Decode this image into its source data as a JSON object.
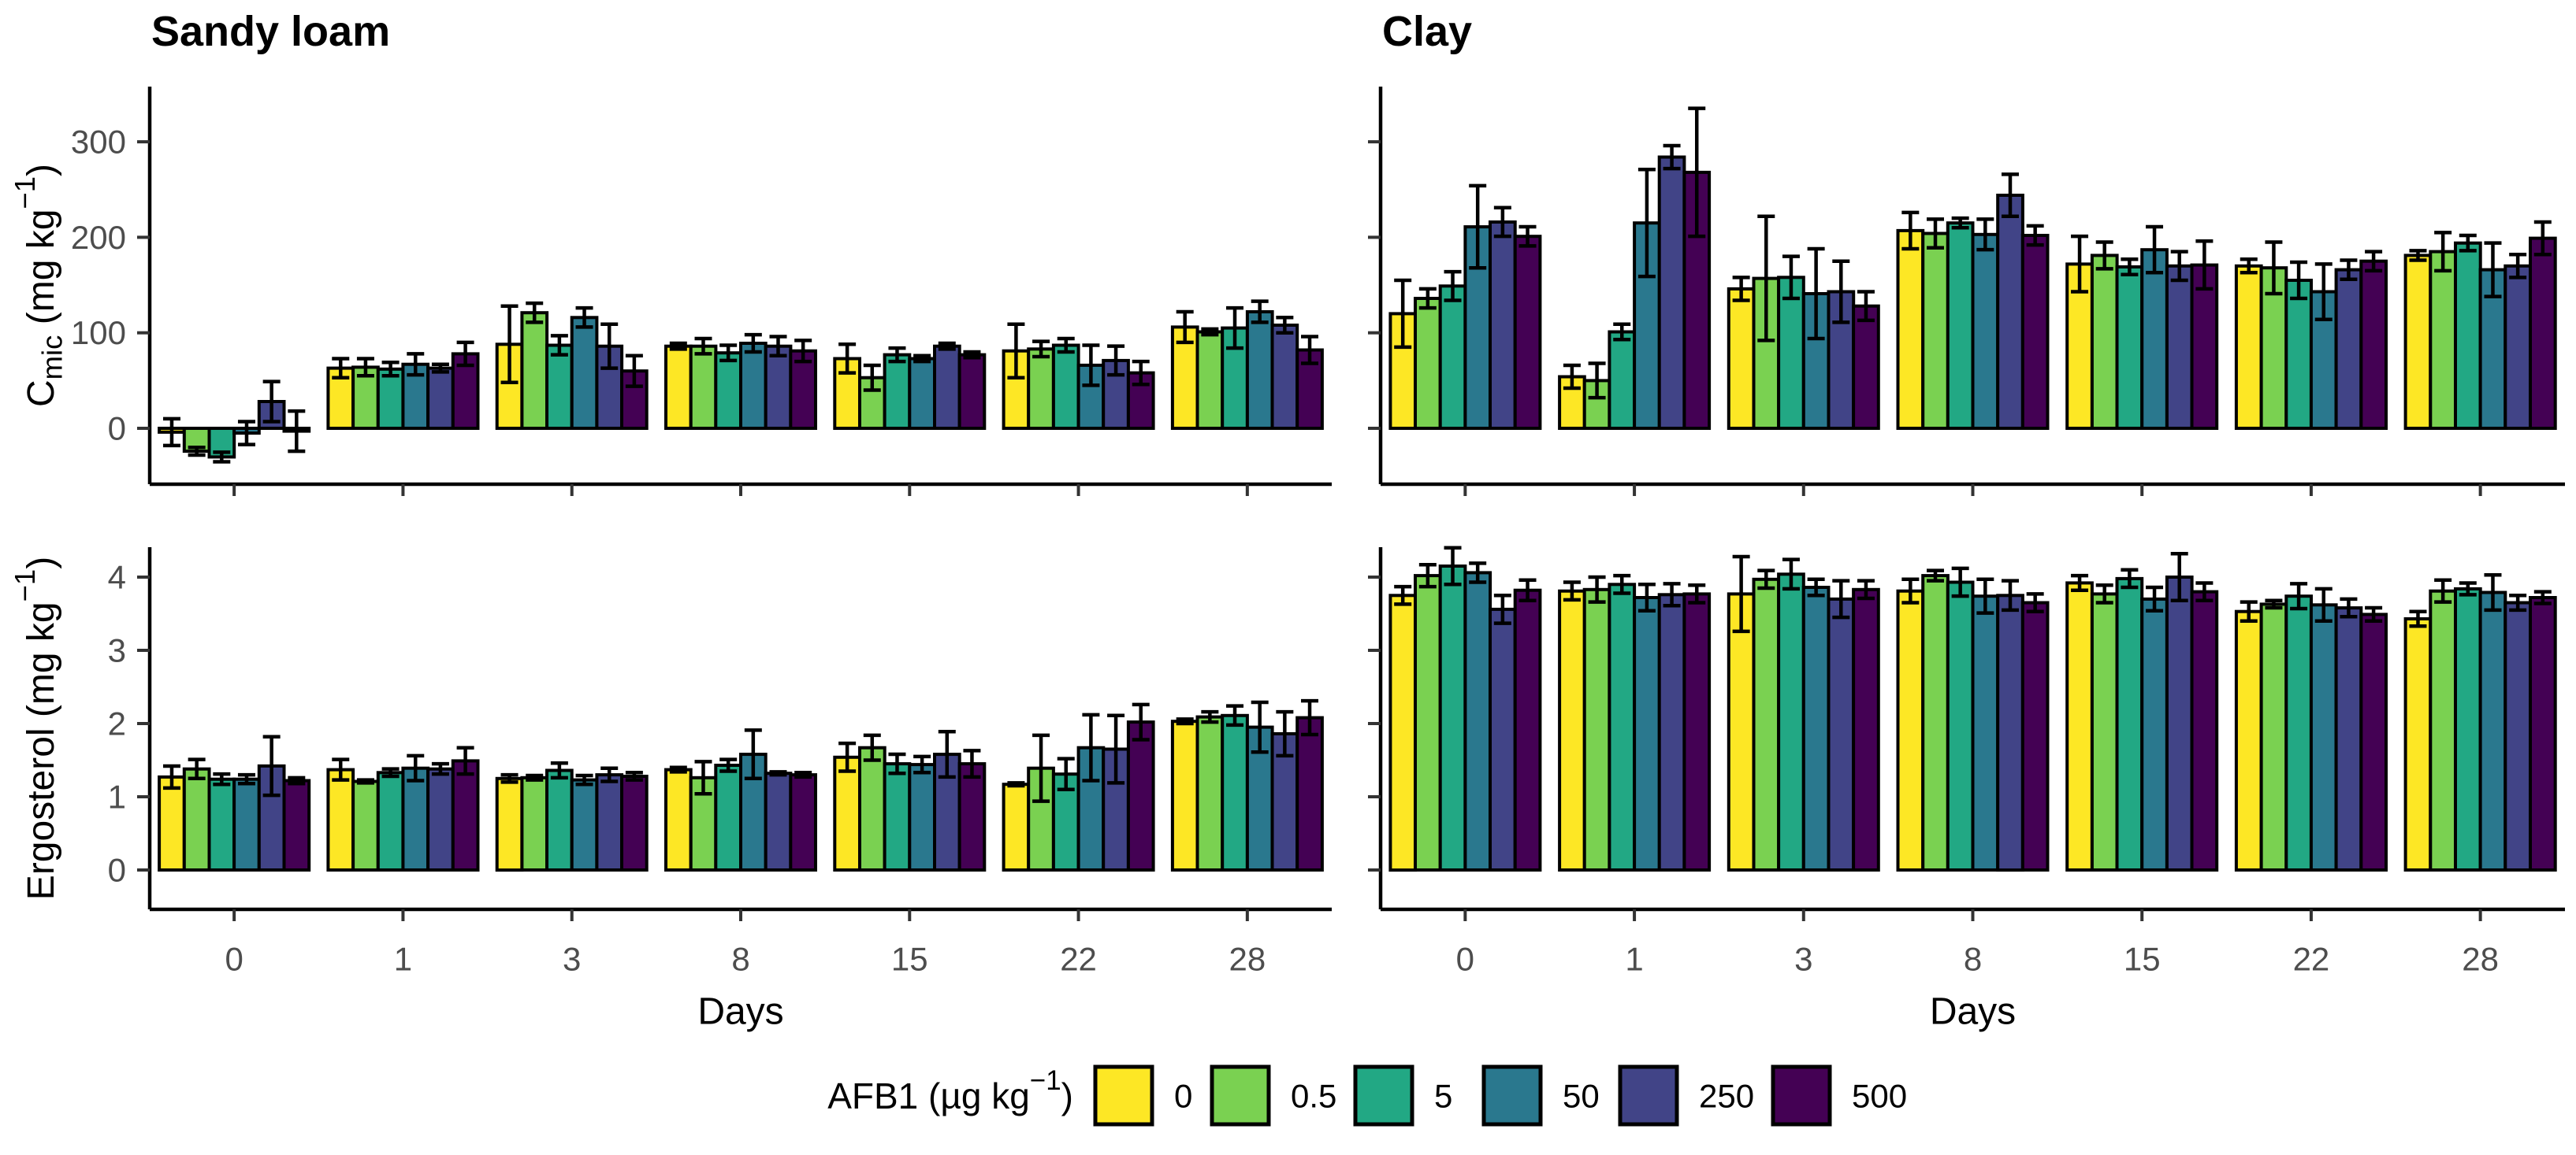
{
  "figure": {
    "panel_titles": [
      "Sandy loam",
      "Clay"
    ],
    "x_axis": {
      "label": "Days",
      "tick_labels": [
        "0",
        "1",
        "3",
        "8",
        "15",
        "22",
        "28"
      ]
    },
    "y_axes": {
      "cmic": {
        "label_parts": [
          {
            "t": "C"
          },
          {
            "t": "mic",
            "sub": true
          },
          {
            "t": " (mg kg"
          },
          {
            "t": "−1",
            "sup": true
          },
          {
            "t": ")"
          }
        ],
        "tick_labels": [
          "0",
          "100",
          "200",
          "300"
        ],
        "tick_values": [
          0,
          100,
          200,
          300
        ]
      },
      "ergosterol": {
        "label_parts": [
          {
            "t": "Ergosterol (mg kg"
          },
          {
            "t": "−1",
            "sup": true
          },
          {
            "t": ")"
          }
        ],
        "tick_labels": [
          "0",
          "1",
          "2",
          "3",
          "4"
        ],
        "tick_values": [
          0,
          1,
          2,
          3,
          4
        ]
      }
    },
    "legend": {
      "title_parts": [
        {
          "t": "AFB1 (µg kg"
        },
        {
          "t": "−1",
          "sup": true
        },
        {
          "t": ")"
        }
      ],
      "items": [
        {
          "label": "0",
          "color": "#FDE725"
        },
        {
          "label": "0.5",
          "color": "#7AD151"
        },
        {
          "label": "5",
          "color": "#22A884"
        },
        {
          "label": "50",
          "color": "#2A788E"
        },
        {
          "label": "250",
          "color": "#414487"
        },
        {
          "label": "500",
          "color": "#440154"
        }
      ]
    },
    "colors": {
      "axis_text": "#4D4D4D",
      "axis_line": "#000000",
      "bar_outline": "#000000",
      "background": "#FFFFFF"
    }
  },
  "chart_data": [
    {
      "type": "bar",
      "panel": "Sandy loam",
      "measure": "Cmic",
      "title": "Sandy loam",
      "ylabel": "Cmic (mg kg-1)",
      "categories": [
        "0",
        "1",
        "3",
        "8",
        "15",
        "22",
        "28"
      ],
      "ylim": [
        -58,
        358
      ],
      "yticks": [
        0,
        100,
        200,
        300
      ],
      "grid": false,
      "series": [
        {
          "name": "0",
          "values": [
            -4,
            63,
            88,
            86,
            73,
            81,
            106
          ],
          "errors": [
            14,
            10,
            40,
            3,
            15,
            28,
            16
          ]
        },
        {
          "name": "0.5",
          "values": [
            -24,
            64,
            121,
            86,
            53,
            83,
            101
          ],
          "errors": [
            4,
            9,
            10,
            8,
            13,
            8,
            3
          ]
        },
        {
          "name": "5",
          "values": [
            -30,
            62,
            87,
            79,
            77,
            87,
            105
          ],
          "errors": [
            5,
            7,
            10,
            8,
            7,
            7,
            21
          ]
        },
        {
          "name": "50",
          "values": [
            -5,
            67,
            116,
            89,
            73,
            66,
            122
          ],
          "errors": [
            12,
            11,
            10,
            9,
            3,
            21,
            11
          ]
        },
        {
          "name": "250",
          "values": [
            28,
            63,
            86,
            86,
            86,
            71,
            108
          ],
          "errors": [
            21,
            4,
            23,
            10,
            3,
            15,
            8
          ]
        },
        {
          "name": "500",
          "values": [
            -3,
            78,
            60,
            81,
            77,
            58,
            82
          ],
          "errors": [
            21,
            12,
            16,
            11,
            3,
            12,
            14
          ]
        }
      ]
    },
    {
      "type": "bar",
      "panel": "Clay",
      "measure": "Cmic",
      "title": "Clay",
      "ylabel": "Cmic (mg kg-1)",
      "categories": [
        "0",
        "1",
        "3",
        "8",
        "15",
        "22",
        "28"
      ],
      "ylim": [
        -58,
        358
      ],
      "yticks": [
        0,
        100,
        200,
        300
      ],
      "grid": false,
      "series": [
        {
          "name": "0",
          "values": [
            120,
            54,
            146,
            207,
            172,
            170,
            181
          ],
          "errors": [
            35,
            12,
            12,
            19,
            29,
            7,
            5
          ]
        },
        {
          "name": "0.5",
          "values": [
            136,
            50,
            157,
            204,
            181,
            168,
            185
          ],
          "errors": [
            10,
            18,
            65,
            15,
            14,
            27,
            20
          ]
        },
        {
          "name": "5",
          "values": [
            149,
            101,
            158,
            215,
            169,
            155,
            194
          ],
          "errors": [
            15,
            8,
            22,
            5,
            8,
            19,
            8
          ]
        },
        {
          "name": "50",
          "values": [
            211,
            215,
            141,
            203,
            187,
            143,
            166
          ],
          "errors": [
            43,
            56,
            47,
            16,
            24,
            29,
            28
          ]
        },
        {
          "name": "250",
          "values": [
            216,
            284,
            143,
            244,
            170,
            166,
            170
          ],
          "errors": [
            15,
            12,
            32,
            22,
            15,
            10,
            12
          ]
        },
        {
          "name": "500",
          "values": [
            201,
            268,
            128,
            202,
            171,
            175,
            199
          ],
          "errors": [
            10,
            67,
            15,
            10,
            25,
            10,
            17
          ]
        }
      ]
    },
    {
      "type": "bar",
      "panel": "Sandy loam",
      "measure": "Ergosterol",
      "title": "Sandy loam",
      "ylabel": "Ergosterol (mg kg-1)",
      "categories": [
        "0",
        "1",
        "3",
        "8",
        "15",
        "22",
        "28"
      ],
      "ylim": [
        -0.54,
        4.41
      ],
      "yticks": [
        0,
        1,
        2,
        3,
        4
      ],
      "grid": false,
      "series": [
        {
          "name": "0",
          "values": [
            1.27,
            1.37,
            1.25,
            1.37,
            1.54,
            1.17,
            2.03
          ],
          "errors": [
            0.15,
            0.14,
            0.05,
            0.03,
            0.19,
            0.02,
            0.03
          ]
        },
        {
          "name": "0.5",
          "values": [
            1.38,
            1.21,
            1.26,
            1.26,
            1.67,
            1.39,
            2.09
          ],
          "errors": [
            0.13,
            0.02,
            0.03,
            0.22,
            0.17,
            0.45,
            0.07
          ]
        },
        {
          "name": "5",
          "values": [
            1.24,
            1.33,
            1.36,
            1.43,
            1.45,
            1.31,
            2.11
          ],
          "errors": [
            0.07,
            0.05,
            0.1,
            0.08,
            0.13,
            0.21,
            0.13
          ]
        },
        {
          "name": "50",
          "values": [
            1.24,
            1.39,
            1.23,
            1.58,
            1.44,
            1.67,
            1.95
          ],
          "errors": [
            0.06,
            0.17,
            0.06,
            0.33,
            0.11,
            0.45,
            0.34
          ]
        },
        {
          "name": "250",
          "values": [
            1.42,
            1.38,
            1.3,
            1.32,
            1.58,
            1.65,
            1.86
          ],
          "errors": [
            0.4,
            0.07,
            0.09,
            0.02,
            0.31,
            0.46,
            0.3
          ]
        },
        {
          "name": "500",
          "values": [
            1.22,
            1.49,
            1.28,
            1.3,
            1.45,
            2.02,
            2.08
          ],
          "errors": [
            0.04,
            0.18,
            0.05,
            0.03,
            0.18,
            0.24,
            0.23
          ]
        }
      ]
    },
    {
      "type": "bar",
      "panel": "Clay",
      "measure": "Ergosterol",
      "title": "Clay",
      "ylabel": "Ergosterol (mg kg-1)",
      "categories": [
        "0",
        "1",
        "3",
        "8",
        "15",
        "22",
        "28"
      ],
      "ylim": [
        -0.54,
        4.41
      ],
      "yticks": [
        0,
        1,
        2,
        3,
        4
      ],
      "grid": false,
      "series": [
        {
          "name": "0",
          "values": [
            3.75,
            3.81,
            3.77,
            3.81,
            3.92,
            3.53,
            3.43
          ],
          "errors": [
            0.12,
            0.12,
            0.51,
            0.16,
            0.1,
            0.13,
            0.1
          ]
        },
        {
          "name": "0.5",
          "values": [
            4.02,
            3.83,
            3.97,
            4.02,
            3.77,
            3.63,
            3.81
          ],
          "errors": [
            0.15,
            0.17,
            0.12,
            0.07,
            0.12,
            0.05,
            0.15
          ]
        },
        {
          "name": "5",
          "values": [
            4.15,
            3.9,
            4.04,
            3.93,
            3.98,
            3.74,
            3.84
          ],
          "errors": [
            0.25,
            0.12,
            0.2,
            0.19,
            0.12,
            0.17,
            0.08
          ]
        },
        {
          "name": "50",
          "values": [
            4.06,
            3.72,
            3.86,
            3.74,
            3.7,
            3.62,
            3.79
          ],
          "errors": [
            0.13,
            0.18,
            0.11,
            0.23,
            0.16,
            0.22,
            0.24
          ]
        },
        {
          "name": "250",
          "values": [
            3.56,
            3.76,
            3.7,
            3.75,
            4.0,
            3.58,
            3.65
          ],
          "errors": [
            0.19,
            0.15,
            0.25,
            0.2,
            0.32,
            0.12,
            0.1
          ]
        },
        {
          "name": "500",
          "values": [
            3.82,
            3.77,
            3.83,
            3.65,
            3.8,
            3.49,
            3.72
          ],
          "errors": [
            0.14,
            0.12,
            0.12,
            0.12,
            0.12,
            0.09,
            0.08
          ]
        }
      ]
    }
  ]
}
